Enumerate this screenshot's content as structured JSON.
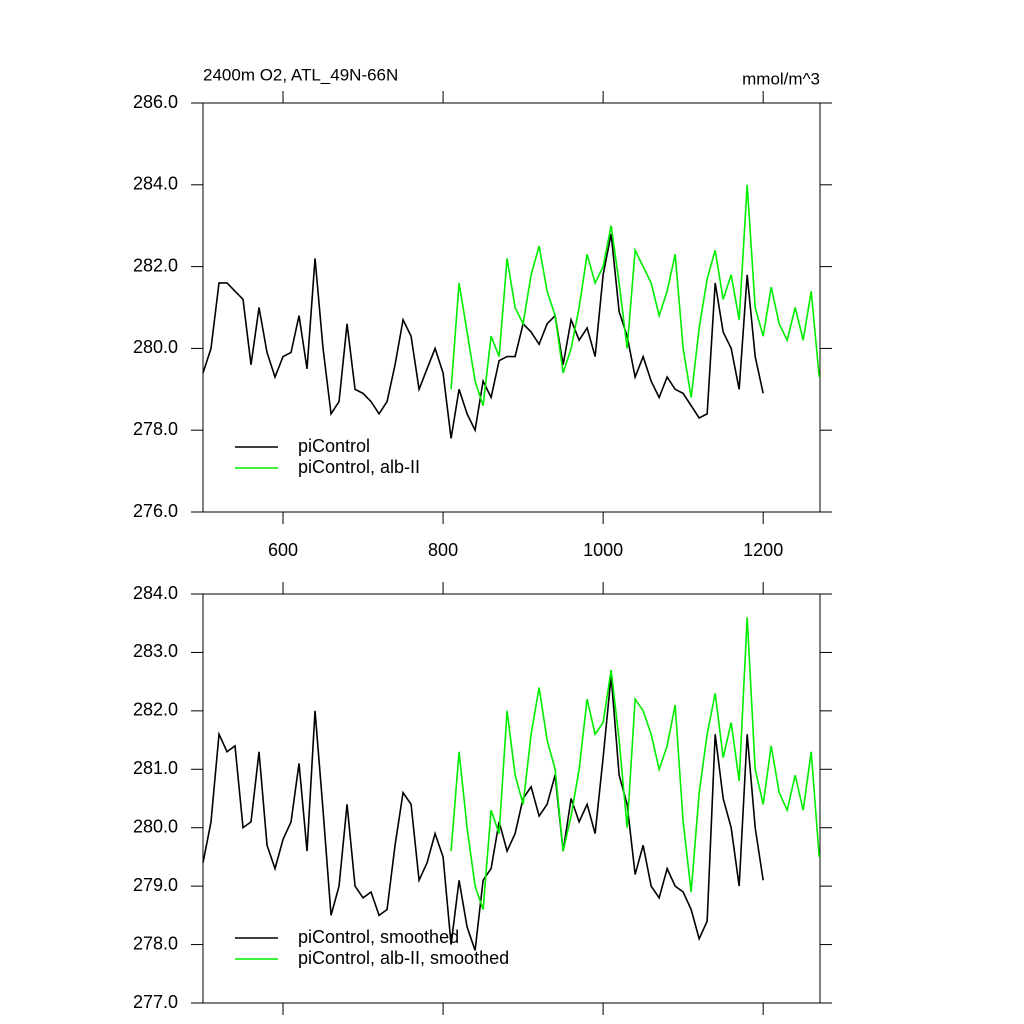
{
  "chart_data": [
    {
      "type": "line",
      "title": "2400m O2, ATL_49N-66N",
      "units": "mmol/m^3",
      "x": [
        500,
        510,
        520,
        530,
        540,
        550,
        560,
        570,
        580,
        590,
        600,
        610,
        620,
        630,
        640,
        650,
        660,
        670,
        680,
        690,
        700,
        710,
        720,
        730,
        740,
        750,
        760,
        770,
        780,
        790,
        800,
        810,
        820,
        830,
        840,
        850,
        860,
        870,
        880,
        890,
        900,
        910,
        920,
        930,
        940,
        950,
        960,
        970,
        980,
        990,
        1000,
        1010,
        1020,
        1030,
        1040,
        1050,
        1060,
        1070,
        1080,
        1090,
        1100,
        1110,
        1120,
        1130,
        1140,
        1150,
        1160,
        1170,
        1180,
        1190,
        1200,
        1210,
        1220,
        1230,
        1240,
        1250,
        1260,
        1270
      ],
      "series": [
        {
          "name": "piControl",
          "color": "#000000",
          "values": [
            279.4,
            280.0,
            281.6,
            281.6,
            281.4,
            281.2,
            279.6,
            281.0,
            279.9,
            279.3,
            279.8,
            279.9,
            280.8,
            279.5,
            282.2,
            280.0,
            278.4,
            278.7,
            280.6,
            279.0,
            278.9,
            278.7,
            278.4,
            278.7,
            279.6,
            280.7,
            280.3,
            279.0,
            279.5,
            280.0,
            279.4,
            277.8,
            279.0,
            278.4,
            278.0,
            279.2,
            278.8,
            279.7,
            279.8,
            279.8,
            280.6,
            280.4,
            280.1,
            280.6,
            280.8,
            279.6,
            280.7,
            280.2,
            280.5,
            279.8,
            281.8,
            282.8,
            280.9,
            280.3,
            279.3,
            279.8,
            279.2,
            278.8,
            279.3,
            279.0,
            278.9,
            278.6,
            278.3,
            278.4,
            281.6,
            280.4,
            280.0,
            279.0,
            281.8,
            279.8,
            278.9,
            null,
            null,
            null,
            null,
            null,
            null,
            null
          ]
        },
        {
          "name": "piControl, alb-II",
          "color": "#00ee00",
          "values": [
            null,
            null,
            null,
            null,
            null,
            null,
            null,
            null,
            null,
            null,
            null,
            null,
            null,
            null,
            null,
            null,
            null,
            null,
            null,
            null,
            null,
            null,
            null,
            null,
            null,
            null,
            null,
            null,
            null,
            null,
            null,
            279.0,
            281.6,
            280.4,
            279.2,
            278.6,
            280.3,
            279.8,
            282.2,
            281.0,
            280.6,
            281.8,
            282.5,
            281.4,
            280.8,
            279.4,
            280.0,
            281.0,
            282.3,
            281.6,
            282.0,
            283.0,
            281.6,
            280.0,
            282.4,
            282.0,
            281.6,
            280.8,
            281.4,
            282.3,
            280.0,
            278.8,
            280.5,
            281.7,
            282.4,
            281.2,
            281.8,
            280.7,
            284.0,
            281.0,
            280.3,
            281.5,
            280.6,
            280.2,
            281.0,
            280.2,
            281.4,
            279.3
          ]
        }
      ],
      "xlim": [
        500,
        1271
      ],
      "xticks": [
        600,
        800,
        1000,
        1200
      ],
      "ylim": [
        276,
        286
      ],
      "yticks": [
        {
          "value": 276,
          "label": "276.0"
        },
        {
          "value": 278,
          "label": "278.0"
        },
        {
          "value": 280,
          "label": "280.0"
        },
        {
          "value": 282,
          "label": "282.0"
        },
        {
          "value": 284,
          "label": "284.0"
        },
        {
          "value": 286,
          "label": "286.0"
        }
      ],
      "legend": "lower left"
    },
    {
      "type": "line",
      "x": [
        500,
        510,
        520,
        530,
        540,
        550,
        560,
        570,
        580,
        590,
        600,
        610,
        620,
        630,
        640,
        650,
        660,
        670,
        680,
        690,
        700,
        710,
        720,
        730,
        740,
        750,
        760,
        770,
        780,
        790,
        800,
        810,
        820,
        830,
        840,
        850,
        860,
        870,
        880,
        890,
        900,
        910,
        920,
        930,
        940,
        950,
        960,
        970,
        980,
        990,
        1000,
        1010,
        1020,
        1030,
        1040,
        1050,
        1060,
        1070,
        1080,
        1090,
        1100,
        1110,
        1120,
        1130,
        1140,
        1150,
        1160,
        1170,
        1180,
        1190,
        1200,
        1210,
        1220,
        1230,
        1240,
        1250,
        1260,
        1270
      ],
      "series": [
        {
          "name": "piControl, smoothed",
          "color": "#000000",
          "values": [
            279.4,
            280.1,
            281.6,
            281.3,
            281.4,
            280.0,
            280.1,
            281.3,
            279.7,
            279.3,
            279.8,
            280.1,
            281.1,
            279.6,
            282.0,
            280.3,
            278.5,
            279.0,
            280.4,
            279.0,
            278.8,
            278.9,
            278.5,
            278.6,
            279.7,
            280.6,
            280.4,
            279.1,
            279.4,
            279.9,
            279.5,
            278.0,
            279.1,
            278.3,
            277.9,
            279.1,
            279.3,
            280.1,
            279.6,
            279.9,
            280.5,
            280.7,
            280.2,
            280.4,
            280.9,
            279.6,
            280.5,
            280.1,
            280.4,
            279.9,
            281.2,
            282.6,
            280.9,
            280.4,
            279.2,
            279.7,
            279.0,
            278.8,
            279.3,
            279.0,
            278.9,
            278.6,
            278.1,
            278.4,
            281.6,
            280.5,
            280.0,
            279.0,
            281.6,
            280.0,
            279.1,
            null,
            null,
            null,
            null,
            null,
            null,
            null
          ]
        },
        {
          "name": "piControl, alb-II, smoothed",
          "color": "#00ee00",
          "values": [
            null,
            null,
            null,
            null,
            null,
            null,
            null,
            null,
            null,
            null,
            null,
            null,
            null,
            null,
            null,
            null,
            null,
            null,
            null,
            null,
            null,
            null,
            null,
            null,
            null,
            null,
            null,
            null,
            null,
            null,
            null,
            279.6,
            281.3,
            280.0,
            279.0,
            278.6,
            280.3,
            279.9,
            282.0,
            280.9,
            280.4,
            281.6,
            282.4,
            281.5,
            281.0,
            279.6,
            280.2,
            281.0,
            282.2,
            281.6,
            281.8,
            282.7,
            281.5,
            280.0,
            282.2,
            282.0,
            281.6,
            281.0,
            281.4,
            282.1,
            280.1,
            278.9,
            280.6,
            281.6,
            282.3,
            281.2,
            281.8,
            280.8,
            283.6,
            281.0,
            280.4,
            281.4,
            280.6,
            280.3,
            280.9,
            280.3,
            281.3,
            279.5
          ]
        }
      ],
      "xlim": [
        500,
        1271
      ],
      "xticks": [
        600,
        800,
        1000,
        1200
      ],
      "xtick_labels": false,
      "ylim": [
        277,
        284
      ],
      "yticks": [
        {
          "value": 277,
          "label": "277.0"
        },
        {
          "value": 278,
          "label": "278.0"
        },
        {
          "value": 279,
          "label": "279.0"
        },
        {
          "value": 280,
          "label": "280.0"
        },
        {
          "value": 281,
          "label": "281.0"
        },
        {
          "value": 282,
          "label": "282.0"
        },
        {
          "value": 283,
          "label": "283.0"
        },
        {
          "value": 284,
          "label": "284.0"
        }
      ],
      "legend": "lower left"
    }
  ]
}
